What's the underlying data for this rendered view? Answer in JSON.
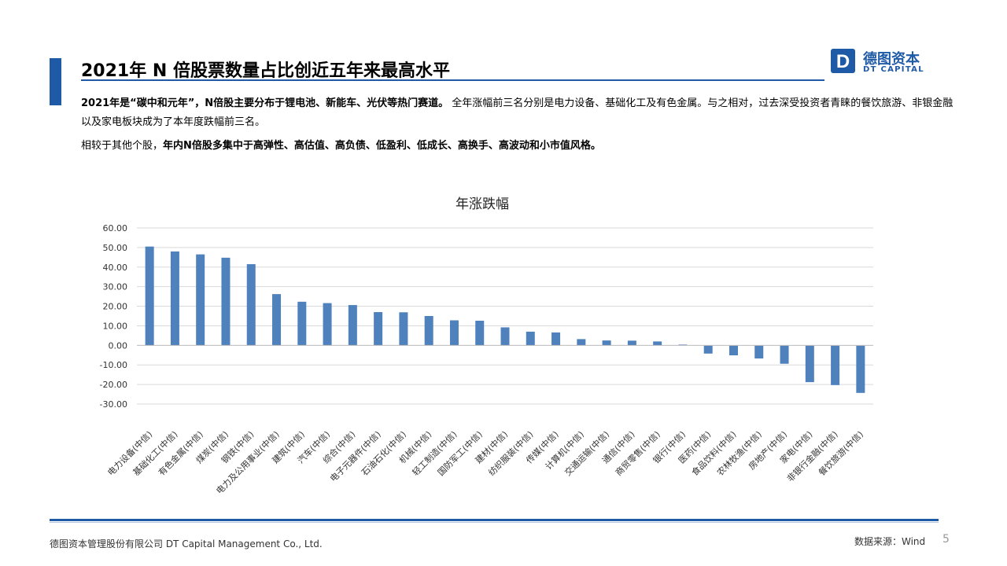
{
  "colors": {
    "accent": "#1F5AA6",
    "bar": "#4F81BD",
    "grid": "#D9D9D9",
    "axis": "#BFBFBF"
  },
  "header": {
    "title": "2021年 N 倍股票数量占比创近五年来最高水平"
  },
  "logo": {
    "icon": "dt-logo-mark",
    "mark_letter": "D",
    "name_cn": "德图资本",
    "name_en": "DT CAPITAL"
  },
  "paragraph1": {
    "bold_lead": "2021年是“碳中和元年”，N倍股主要分布于锂电池、新能车、光伏等热门赛道。",
    "rest": " 全年涨幅前三名分别是电力设备、基础化工及有色金属。与之相对，过去深受投资者青睐的餐饮旅游、非银金融以及家电板块成为了本年度跌幅前三名。"
  },
  "paragraph2": {
    "lead": "相较于其他个股，",
    "bold": "年内N倍股多集中于高弹性、高估值、高负债、低盈利、低成长、高换手、高波动和小市值风格。"
  },
  "chart_data": {
    "type": "bar",
    "title": "年涨跌幅",
    "xlabel": "",
    "ylabel": "",
    "ylim": [
      -30,
      60
    ],
    "yticks": [
      60,
      50,
      40,
      30,
      20,
      10,
      0,
      -10,
      -20,
      -30
    ],
    "ytick_labels": [
      "60.00",
      "50.00",
      "40.00",
      "30.00",
      "20.00",
      "10.00",
      "0.00",
      "-10.00",
      "-20.00",
      "-30.00"
    ],
    "grid": true,
    "categories": [
      "电力设备(中信)",
      "基础化工(中信)",
      "有色金属(中信)",
      "煤炭(中信)",
      "钢铁(中信)",
      "电力及公用事业(中信)",
      "建筑(中信)",
      "汽车(中信)",
      "综合(中信)",
      "电子元器件(中信)",
      "石油石化(中信)",
      "机械(中信)",
      "轻工制造(中信)",
      "国防军工(中信)",
      "建材(中信)",
      "纺织服装(中信)",
      "传媒(中信)",
      "计算机(中信)",
      "交通运输(中信)",
      "通信(中信)",
      "商贸零售(中信)",
      "银行(中信)",
      "医药(中信)",
      "食品饮料(中信)",
      "农林牧渔(中信)",
      "房地产(中信)",
      "家电(中信)",
      "非银行金融(中信)",
      "餐饮旅游(中信)"
    ],
    "values": [
      50.5,
      48.0,
      46.5,
      44.8,
      41.5,
      26.2,
      22.3,
      21.6,
      20.6,
      17.0,
      16.9,
      15.0,
      12.8,
      12.6,
      9.2,
      7.0,
      6.6,
      3.2,
      2.5,
      2.4,
      2.0,
      0.4,
      -4.2,
      -5.1,
      -6.7,
      -9.4,
      -18.8,
      -20.3,
      -24.3
    ]
  },
  "footer": {
    "company": "德图资本管理股份有限公司  DT Capital Management  Co., Ltd.",
    "source": "数据来源：Wind",
    "page": "5"
  }
}
